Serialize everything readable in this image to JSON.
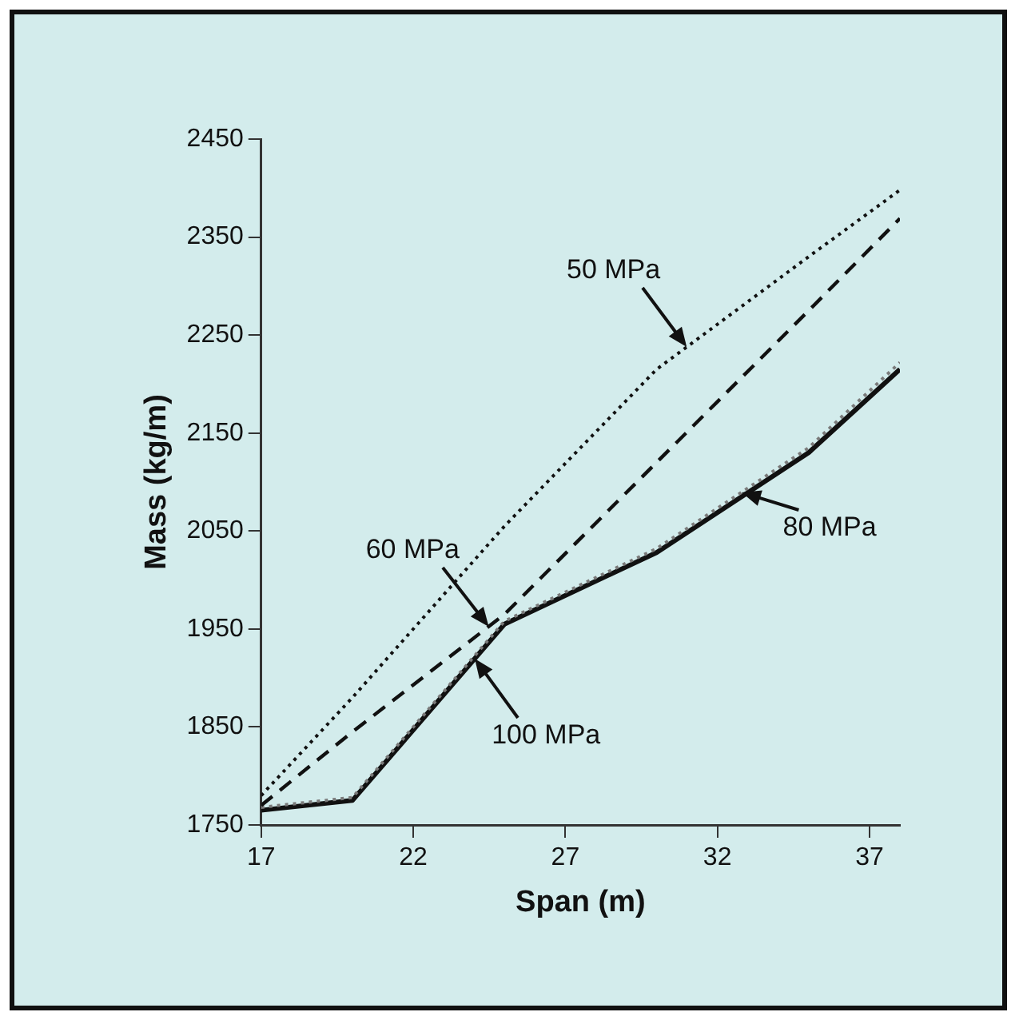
{
  "chart_data": {
    "type": "line",
    "xlabel": "Span (m)",
    "ylabel": "Mass (kg/m)",
    "x": [
      17,
      20,
      25,
      30,
      35,
      38
    ],
    "series": [
      {
        "color": "#111111",
        "line_style": "dotted",
        "values": [
          1780,
          1880,
          2055,
          2215,
          2330,
          2398
        ]
      },
      {
        "color": "#111111",
        "line_style": "dashed",
        "values": [
          1770,
          1845,
          1965,
          2120,
          2275,
          2369
        ]
      },
      {
        "color": "#7a7a7a",
        "line_style": "dotted",
        "values": [
          1768,
          1778,
          1958,
          2032,
          2135,
          2222
        ]
      },
      {
        "color": "#111111",
        "line_style": "solid",
        "values": [
          1765,
          1775,
          1955,
          2028,
          2130,
          2215
        ]
      }
    ],
    "xlim": [
      17,
      38
    ],
    "xticks": [
      17,
      22,
      27,
      32,
      37
    ],
    "ylim": [
      1750,
      2450
    ],
    "yticks": [
      1750,
      1850,
      1950,
      2050,
      2150,
      2250,
      2350,
      2450
    ],
    "grid": false,
    "legend": false,
    "marker": "none",
    "annotations": [
      {
        "text": "50 MPa",
        "x": 31,
        "y": 2238
      },
      {
        "text": "60 MPa",
        "x": 24.5,
        "y": 1953
      },
      {
        "text": "80 MPa",
        "x": 32.8,
        "y": 2090
      },
      {
        "text": "100 MPa",
        "x": 24,
        "y": 1919
      }
    ]
  }
}
